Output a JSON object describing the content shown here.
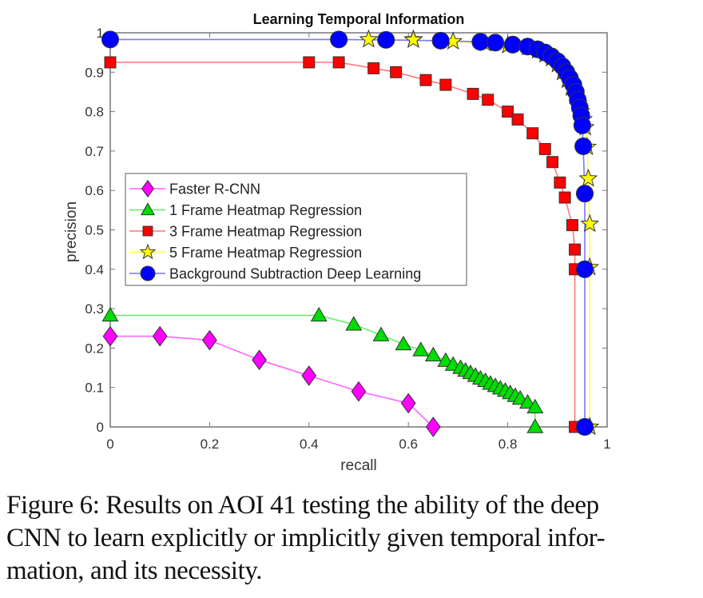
{
  "chart_data": {
    "type": "line",
    "title": "Learning Temporal Information",
    "xlabel": "recall",
    "ylabel": "precision",
    "xlim": [
      0,
      1
    ],
    "ylim": [
      0,
      1
    ],
    "xticks": [
      "0",
      "0.2",
      "0.4",
      "0.6",
      "0.8",
      "1"
    ],
    "yticks": [
      "0",
      "0.1",
      "0.2",
      "0.3",
      "0.4",
      "0.5",
      "0.6",
      "0.7",
      "0.8",
      "0.9",
      "1"
    ],
    "grid": false,
    "legend_position": "center-left",
    "series": [
      {
        "name": "Faster R-CNN",
        "color": "#ff00ff",
        "line_color": "#ff66ff",
        "marker": "diamond",
        "x": [
          0,
          0.1,
          0.2,
          0.3,
          0.4,
          0.5,
          0.6,
          0.65
        ],
        "y": [
          0.23,
          0.23,
          0.22,
          0.17,
          0.13,
          0.09,
          0.06,
          0
        ]
      },
      {
        "name": "1 Frame Heatmap Regression",
        "color": "#00dd00",
        "line_color": "#66ee66",
        "marker": "triangle",
        "x": [
          0,
          0.42,
          0.49,
          0.545,
          0.59,
          0.625,
          0.65,
          0.675,
          0.69,
          0.705,
          0.715,
          0.725,
          0.735,
          0.745,
          0.755,
          0.765,
          0.775,
          0.785,
          0.795,
          0.805,
          0.815,
          0.825,
          0.84,
          0.855,
          0.855
        ],
        "y": [
          0.283,
          0.283,
          0.26,
          0.233,
          0.21,
          0.195,
          0.182,
          0.168,
          0.158,
          0.15,
          0.143,
          0.137,
          0.13,
          0.123,
          0.117,
          0.11,
          0.104,
          0.098,
          0.092,
          0.086,
          0.079,
          0.072,
          0.062,
          0.05,
          0
        ]
      },
      {
        "name": "3 Frame Heatmap Regression",
        "color": "#ff0000",
        "line_color": "#ff7777",
        "marker": "square",
        "x": [
          0,
          0.4,
          0.46,
          0.53,
          0.575,
          0.635,
          0.675,
          0.73,
          0.76,
          0.8,
          0.82,
          0.85,
          0.875,
          0.89,
          0.905,
          0.915,
          0.93,
          0.935,
          0.935,
          0.935
        ],
        "y": [
          0.925,
          0.925,
          0.925,
          0.91,
          0.9,
          0.88,
          0.868,
          0.845,
          0.83,
          0.8,
          0.78,
          0.745,
          0.705,
          0.672,
          0.62,
          0.582,
          0.512,
          0.45,
          0.4,
          0
        ]
      },
      {
        "name": "5 Frame Heatmap Regression",
        "color": "#ffff00",
        "line_color": "#ffff44",
        "marker": "star",
        "x": [
          0.52,
          0.61,
          0.61,
          0.69,
          0.755,
          0.8,
          0.84,
          0.86,
          0.875,
          0.888,
          0.9,
          0.91,
          0.92,
          0.928,
          0.935,
          0.942,
          0.947,
          0.952,
          0.956,
          0.96,
          0.962,
          0.965,
          0.965,
          0.965,
          0.965
        ],
        "y": [
          0.983,
          0.983,
          0.982,
          0.978,
          0.973,
          0.968,
          0.963,
          0.955,
          0.945,
          0.935,
          0.92,
          0.9,
          0.88,
          0.86,
          0.84,
          0.82,
          0.8,
          0.78,
          0.76,
          0.71,
          0.63,
          0.515,
          0.405,
          0,
          0
        ]
      },
      {
        "name": "Background Subtraction Deep Learning",
        "color": "#0000ff",
        "line_color": "#7777ff",
        "marker": "circle",
        "x": [
          0,
          0.46,
          0.555,
          0.665,
          0.745,
          0.775,
          0.81,
          0.84,
          0.86,
          0.875,
          0.888,
          0.9,
          0.91,
          0.918,
          0.925,
          0.932,
          0.937,
          0.941,
          0.945,
          0.948,
          0.95,
          0.952,
          0.955,
          0.955,
          0.955,
          0.955
        ],
        "y": [
          0.983,
          0.983,
          0.982,
          0.98,
          0.977,
          0.975,
          0.97,
          0.965,
          0.958,
          0.95,
          0.94,
          0.928,
          0.915,
          0.9,
          0.885,
          0.868,
          0.85,
          0.83,
          0.81,
          0.79,
          0.765,
          0.712,
          0.592,
          0.4,
          0,
          0
        ]
      }
    ]
  },
  "caption": {
    "lines": [
      "Figure 6: Results on AOI 41 testing the ability of the deep",
      "CNN to learn explicitly or implicitly given temporal infor-",
      "mation, and its necessity."
    ]
  }
}
